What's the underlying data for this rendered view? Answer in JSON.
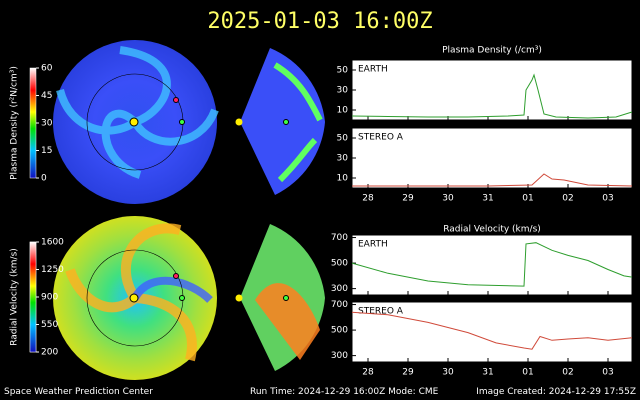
{
  "title": "2025-01-03 16:00Z",
  "footer": {
    "center": "Space Weather Prediction Center",
    "run": "Run Time: 2024-12-29 16:00Z  Mode: CME",
    "created": "Image Created: 2024-12-29 17:55Z"
  },
  "colorbars": [
    {
      "label": "Plasma Density (r²N/cm³)",
      "lim": [
        0,
        60
      ],
      "ticks": [
        0,
        15,
        30,
        45,
        60
      ]
    },
    {
      "label": "Radial Velocity (km/s)",
      "lim": [
        200,
        1600
      ],
      "ticks": [
        200,
        550,
        900,
        1250,
        1600
      ]
    }
  ],
  "chart_data": [
    {
      "type": "line",
      "title": "Plasma Density (/cm³)",
      "xlim": [
        -0.4,
        6.6
      ],
      "xticks": [
        {
          "value": 0,
          "label": "28"
        },
        {
          "value": 1,
          "label": "29"
        },
        {
          "value": 2,
          "label": "30"
        },
        {
          "value": 3,
          "label": "31"
        },
        {
          "value": 4,
          "label": "01"
        },
        {
          "value": 5,
          "label": "02"
        },
        {
          "value": 6,
          "label": "03"
        }
      ],
      "panels": [
        {
          "name": "EARTH",
          "color": "#2e9e2e",
          "ylim": [
            0,
            60
          ],
          "yticks": [
            10,
            30,
            50
          ],
          "x": [
            -0.4,
            0.5,
            1.5,
            2.5,
            3.5,
            3.9,
            3.95,
            4.1,
            4.15,
            4.25,
            4.4,
            4.7,
            5.5,
            6.2,
            6.6
          ],
          "values": [
            4,
            3.5,
            3,
            3,
            4,
            5,
            30,
            40,
            45,
            30,
            6,
            3,
            2,
            3,
            8
          ]
        },
        {
          "name": "STEREO A",
          "color": "#d04a3a",
          "ylim": [
            0,
            60
          ],
          "yticks": [
            10,
            30,
            50
          ],
          "x": [
            -0.4,
            1.5,
            3,
            4.1,
            4.4,
            4.6,
            4.9,
            5.5,
            6.6
          ],
          "values": [
            2,
            2,
            2,
            3,
            14,
            9,
            8,
            3,
            2
          ]
        }
      ]
    },
    {
      "type": "line",
      "title": "Radial Velocity (km/s)",
      "xlim": [
        -0.4,
        6.6
      ],
      "xticks": [
        {
          "value": 0,
          "label": "28"
        },
        {
          "value": 1,
          "label": "29"
        },
        {
          "value": 2,
          "label": "30"
        },
        {
          "value": 3,
          "label": "31"
        },
        {
          "value": 4,
          "label": "01"
        },
        {
          "value": 5,
          "label": "02"
        },
        {
          "value": 6,
          "label": "03"
        }
      ],
      "panels": [
        {
          "name": "EARTH",
          "color": "#2e9e2e",
          "ylim": [
            250,
            720
          ],
          "yticks": [
            300,
            500,
            700
          ],
          "x": [
            -0.4,
            0.5,
            1.5,
            2.5,
            3.9,
            3.95,
            4.2,
            4.6,
            5,
            5.5,
            6,
            6.4,
            6.6
          ],
          "values": [
            500,
            420,
            360,
            330,
            320,
            650,
            660,
            600,
            560,
            520,
            450,
            400,
            390
          ]
        },
        {
          "name": "STEREO A",
          "color": "#d04a3a",
          "ylim": [
            250,
            720
          ],
          "yticks": [
            300,
            500,
            700
          ],
          "x": [
            -0.4,
            0.5,
            1.5,
            2.5,
            3.2,
            3.9,
            4.1,
            4.3,
            4.6,
            5,
            5.5,
            6,
            6.6
          ],
          "values": [
            640,
            620,
            560,
            480,
            400,
            360,
            350,
            450,
            420,
            430,
            440,
            420,
            440
          ]
        }
      ]
    }
  ]
}
